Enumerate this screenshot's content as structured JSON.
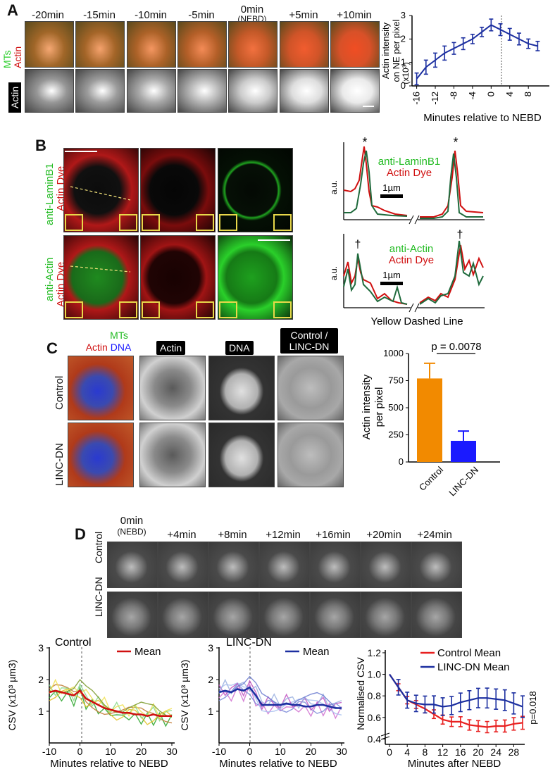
{
  "panels": {
    "a": "A",
    "b": "B",
    "c": "C",
    "d": "D"
  },
  "panelA": {
    "timepoints": [
      "-20min",
      "-15min",
      "-10min",
      "-5min",
      "0min",
      "+5min",
      "+10min"
    ],
    "nebd_note": "(NEBD)",
    "row_label_mts": "MTs",
    "row_label_actin": "Actin",
    "row2_label": "Actin",
    "ylabel_lines": [
      "Actin intensity",
      "on NE per pixel",
      "(x10³)"
    ],
    "xlabel": "Minutes relative to NEBD"
  },
  "chartA": {
    "type": "line",
    "x": [
      -16,
      -14,
      -12,
      -10,
      -8,
      -6,
      -4,
      -2,
      0,
      2,
      4,
      6,
      8,
      10
    ],
    "values": [
      0.3,
      0.8,
      1.1,
      1.4,
      1.6,
      1.8,
      2.0,
      2.3,
      2.6,
      2.4,
      2.2,
      2.0,
      1.8,
      1.7
    ],
    "err": [
      0.25,
      0.3,
      0.3,
      0.3,
      0.25,
      0.25,
      0.2,
      0.2,
      0.25,
      0.25,
      0.25,
      0.25,
      0.2,
      0.2
    ],
    "xticks": [
      "-16",
      "-12",
      "-8",
      "-4",
      "0",
      "4",
      "8"
    ],
    "yticks": [
      "0",
      "1",
      "2",
      "3"
    ],
    "ylim": [
      0,
      3
    ],
    "color": "#1c2fa0"
  },
  "panelB": {
    "row1_label_green": "anti-LaminB1",
    "row1_label_red": "Actin Dye",
    "row2_label_green": "anti-Actin",
    "row2_label_red": "Actin Dye",
    "legend1_green": "anti-LaminB1",
    "legend1_red": "Actin Dye",
    "legend2_green": "anti-Actin",
    "legend2_red": "Actin Dye",
    "scale": "1µm",
    "ylabel": "a.u.",
    "xlabel": "Yellow Dashed Line",
    "star": "*",
    "dagger": "†"
  },
  "panelC": {
    "col_labels": [
      "Actin",
      "DNA"
    ],
    "col_label_last": [
      "Control /",
      "LINC-DN"
    ],
    "merge_mts": "MTs",
    "merge_actin": "Actin",
    "merge_dna": "DNA",
    "row_labels": [
      "Control",
      "LINC-DN"
    ],
    "ylabel_lines": [
      "Actin intensity",
      "per pixel"
    ],
    "pvalue": "p = 0.0078"
  },
  "chartC": {
    "type": "bar",
    "categories": [
      "Control",
      "LINC-DN"
    ],
    "values": [
      770,
      195
    ],
    "err": [
      140,
      90
    ],
    "colors": [
      "#f28a00",
      "#1a1aff"
    ],
    "yticks": [
      "0",
      "250",
      "500",
      "750",
      "1000"
    ],
    "ylim": [
      0,
      1000
    ]
  },
  "panelD": {
    "timepoints": [
      "0min",
      "+4min",
      "+8min",
      "+12min",
      "+16min",
      "+20min",
      "+24min"
    ],
    "nebd_note": "(NEBD)",
    "row_labels": [
      "Control",
      "LINC-DN"
    ],
    "plot1_title": "Control",
    "plot2_title": "LINC-DN",
    "legend1": "Mean",
    "legend2": "Mean",
    "ylabel": "CSV (x10³ µm3)",
    "xlabel": "Minutes relative to NEBD",
    "xticks": [
      "-10",
      "0",
      "10",
      "20",
      "30"
    ],
    "yticks": [
      "1",
      "2",
      "3"
    ],
    "norm_legend": [
      "Control Mean",
      "LINC-DN Mean"
    ],
    "norm_ylabel": "Normalised CSV",
    "norm_xlabel": "Minutes after NEBD",
    "norm_xticks": [
      "0",
      "4",
      "8",
      "12",
      "16",
      "20",
      "24",
      "28"
    ],
    "norm_yticks": [
      "0.4",
      "0.6",
      "0.8",
      "1.0",
      "1.2"
    ],
    "norm_p": "p=0.018"
  },
  "chart_data": [
    {
      "type": "line",
      "x": [
        -16,
        -14,
        -12,
        -10,
        -8,
        -6,
        -4,
        -2,
        0,
        2,
        4,
        6,
        8,
        10
      ],
      "values": [
        0.3,
        0.8,
        1.1,
        1.4,
        1.6,
        1.8,
        2.0,
        2.3,
        2.6,
        2.4,
        2.2,
        2.0,
        1.8,
        1.7
      ],
      "xlabel": "Minutes relative to NEBD",
      "ylabel": "Actin intensity on NE per pixel (x10³)",
      "ylim": [
        0,
        3
      ]
    },
    {
      "type": "bar",
      "categories": [
        "Control",
        "LINC-DN"
      ],
      "values": [
        770,
        195
      ],
      "ylabel": "Actin intensity per pixel",
      "ylim": [
        0,
        1000
      ]
    },
    {
      "type": "line",
      "title": "Control",
      "x": [
        -10,
        -8,
        -6,
        -4,
        -2,
        0,
        2,
        4,
        6,
        8,
        10,
        12,
        14,
        16,
        18,
        20,
        22,
        24,
        26,
        28,
        30
      ],
      "series": [
        {
          "name": "Mean",
          "values": [
            1.6,
            1.65,
            1.6,
            1.55,
            1.5,
            1.65,
            1.4,
            1.3,
            1.2,
            1.1,
            1.05,
            1.0,
            0.95,
            0.95,
            0.9,
            0.9,
            0.85,
            0.9,
            0.85,
            0.85,
            0.85
          ]
        }
      ],
      "xlabel": "Minutes relative to NEBD",
      "ylabel": "CSV (x10³ µm3)",
      "ylim": [
        0,
        3
      ]
    },
    {
      "type": "line",
      "title": "LINC-DN",
      "x": [
        -10,
        -8,
        -6,
        -4,
        -2,
        0,
        2,
        4,
        6,
        8,
        10,
        12,
        14,
        16,
        18,
        20,
        22,
        24,
        26,
        28,
        30
      ],
      "series": [
        {
          "name": "Mean",
          "values": [
            1.6,
            1.65,
            1.6,
            1.7,
            1.65,
            1.75,
            1.5,
            1.2,
            1.2,
            1.2,
            1.2,
            1.25,
            1.2,
            1.2,
            1.15,
            1.15,
            1.2,
            1.2,
            1.15,
            1.1,
            1.1
          ]
        }
      ],
      "xlabel": "Minutes relative to NEBD",
      "ylabel": "CSV (x10³ µm3)",
      "ylim": [
        0,
        3
      ]
    },
    {
      "type": "line",
      "x": [
        0,
        2,
        4,
        6,
        8,
        10,
        12,
        14,
        16,
        18,
        20,
        22,
        24,
        26,
        28,
        30
      ],
      "series": [
        {
          "name": "Control Mean",
          "values": [
            1.0,
            0.88,
            0.76,
            0.72,
            0.68,
            0.63,
            0.58,
            0.56,
            0.56,
            0.53,
            0.52,
            0.51,
            0.52,
            0.52,
            0.54,
            0.55
          ]
        },
        {
          "name": "LINC-DN Mean",
          "values": [
            1.0,
            0.88,
            0.76,
            0.73,
            0.72,
            0.72,
            0.7,
            0.71,
            0.74,
            0.76,
            0.78,
            0.78,
            0.77,
            0.76,
            0.73,
            0.7
          ]
        }
      ],
      "xlabel": "Minutes after NEBD",
      "ylabel": "Normalised CSV",
      "ylim": [
        0.4,
        1.2
      ]
    }
  ]
}
